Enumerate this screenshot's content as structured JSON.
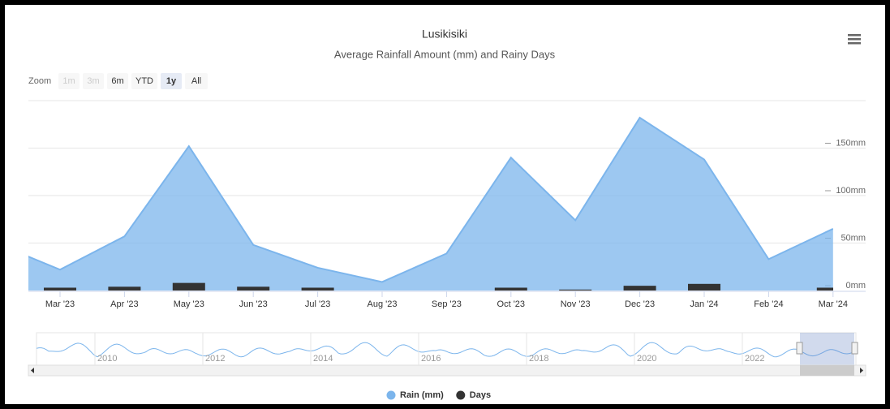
{
  "chart_data": {
    "type": "area",
    "title": "Lusikisiki",
    "subtitle": "Average Rainfall Amount (mm) and Rainy Days",
    "zoom_label": "Zoom",
    "range_buttons": [
      "1m",
      "3m",
      "6m",
      "YTD",
      "1y",
      "All"
    ],
    "selected_button": "1y",
    "categories": [
      null,
      "Mar '23",
      "Apr '23",
      "May '23",
      "Jun '23",
      "Jul '23",
      "Aug '23",
      "Sep '23",
      "Oct '23",
      "Nov '23",
      "Dec '23",
      "Jan '24",
      "Feb '24",
      "Mar '24"
    ],
    "series": [
      {
        "name": "Rain (mm)",
        "type": "area",
        "color": "#7cb5ec",
        "values": [
          50,
          22,
          57,
          152,
          48,
          24,
          9,
          39,
          140,
          74,
          182,
          138,
          33,
          65
        ]
      },
      {
        "name": "Days",
        "type": "column",
        "color": "#333333",
        "axis": "y2",
        "values": [
          null,
          3,
          4,
          8,
          4,
          3,
          0,
          0,
          3,
          1,
          5,
          7,
          0,
          3
        ]
      }
    ],
    "ylim": [
      0,
      200
    ],
    "yticks": [
      {
        "value": 0,
        "label": "0mm"
      },
      {
        "value": 50,
        "label": "50mm"
      },
      {
        "value": 100,
        "label": "100mm"
      },
      {
        "value": 150,
        "label": "150mm"
      }
    ],
    "y2lim": [
      0,
      200
    ],
    "grid": true,
    "navigator_labels": [
      "2010",
      "2012",
      "2014",
      "2016",
      "2018",
      "2020",
      "2022"
    ],
    "legend": "bottom"
  }
}
